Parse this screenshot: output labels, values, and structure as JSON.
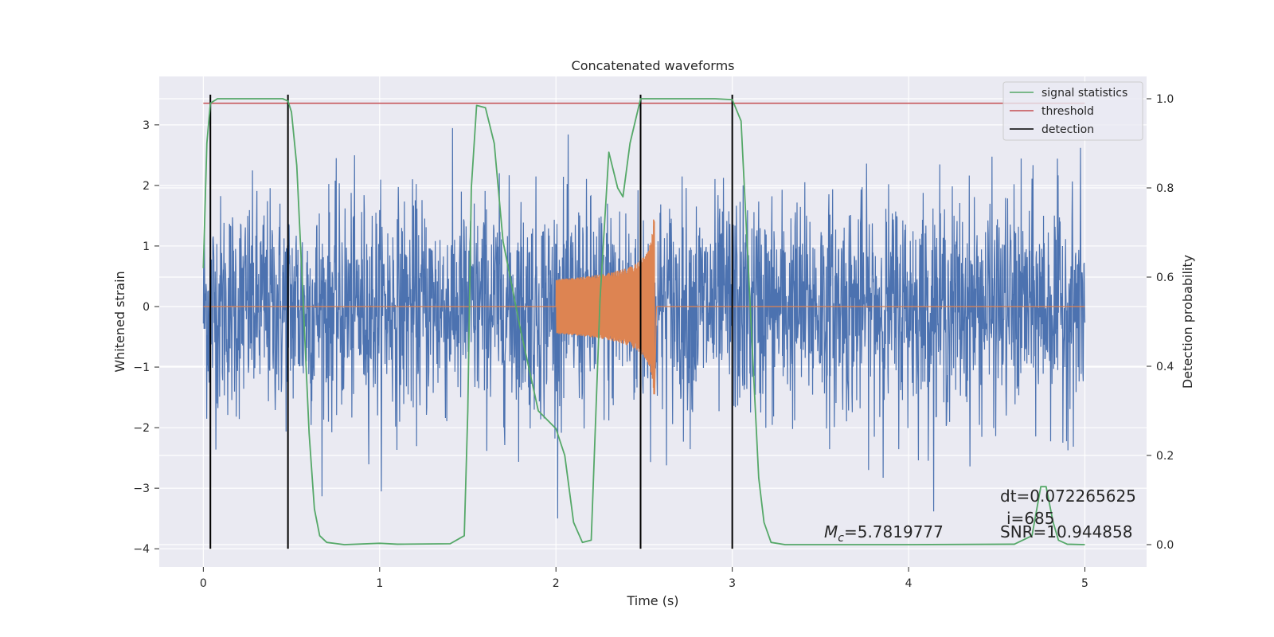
{
  "chart_data": {
    "type": "line",
    "title": "Concatenated waveforms",
    "xlabel": "Time (s)",
    "ylabel": "Whitened strain",
    "ylabel_right": "Detection probability",
    "xlim": [
      -0.25,
      5.35
    ],
    "ylim": [
      -4.3,
      3.8
    ],
    "ylim_right": [
      -0.05,
      1.05
    ],
    "xticks": [
      "0",
      "1",
      "2",
      "3",
      "4",
      "5"
    ],
    "yticks": [
      "3",
      "2",
      "1",
      "0",
      "−1",
      "−2",
      "−3",
      "−4"
    ],
    "yticks_right": [
      "1.0",
      "0.8",
      "0.6",
      "0.4",
      "0.2",
      "0.0"
    ],
    "grid": true,
    "legend_position": "top-right",
    "legend": [
      "signal statistics",
      "threshold",
      "detection"
    ],
    "colors": {
      "strain": "#4c72b0",
      "template": "#dd8452",
      "statistic": "#55a868",
      "threshold": "#c44e52",
      "detection": "#000000",
      "background": "#eaeaf2"
    },
    "series": [
      {
        "name": "signal statistics",
        "axis": "right",
        "x": [
          0.0,
          0.02,
          0.04,
          0.08,
          0.15,
          0.3,
          0.45,
          0.48,
          0.5,
          0.53,
          0.56,
          0.6,
          0.63,
          0.66,
          0.7,
          0.8,
          1.0,
          1.1,
          1.4,
          1.48,
          1.5,
          1.52,
          1.55,
          1.6,
          1.65,
          1.7,
          1.8,
          1.9,
          2.0,
          2.05,
          2.1,
          2.15,
          2.2,
          2.25,
          2.3,
          2.35,
          2.38,
          2.42,
          2.48,
          2.55,
          2.6,
          2.7,
          2.9,
          3.0,
          3.05,
          3.1,
          3.15,
          3.18,
          3.22,
          3.3,
          4.0,
          4.6,
          4.7,
          4.75,
          4.78,
          4.82,
          4.85,
          4.9,
          5.0
        ],
        "y": [
          0.62,
          0.9,
          0.99,
          1.0,
          1.0,
          1.0,
          1.0,
          0.995,
          0.97,
          0.85,
          0.6,
          0.25,
          0.08,
          0.02,
          0.005,
          0.0,
          0.003,
          0.001,
          0.002,
          0.02,
          0.3,
          0.8,
          0.985,
          0.98,
          0.9,
          0.68,
          0.48,
          0.3,
          0.26,
          0.2,
          0.05,
          0.005,
          0.01,
          0.55,
          0.88,
          0.8,
          0.78,
          0.9,
          1.0,
          1.0,
          1.0,
          1.0,
          1.0,
          0.998,
          0.95,
          0.55,
          0.15,
          0.05,
          0.005,
          0.0,
          0.0,
          0.001,
          0.02,
          0.13,
          0.13,
          0.05,
          0.01,
          0.001,
          0.0
        ]
      },
      {
        "name": "threshold",
        "axis": "right",
        "x": [
          0.0,
          5.0
        ],
        "y": [
          0.99,
          0.99
        ]
      },
      {
        "name": "detection",
        "axis": "left",
        "x": [
          0.04,
          0.48,
          2.48,
          3.0
        ],
        "y_range": [
          -4.0,
          3.5
        ]
      }
    ],
    "strain_signal": {
      "x_range": [
        0.0,
        5.0
      ],
      "amplitude_range": [
        -3.5,
        3.5
      ]
    },
    "template_signal": {
      "x_range": [
        2.0,
        2.56
      ],
      "amplitude_range": [
        -1.45,
        1.7
      ]
    },
    "annotations": [
      "dt=0.072265625",
      "i=685",
      "SNR=10.944858"
    ],
    "annotation_chirp_mass": {
      "symbol": "M",
      "subscript": "c",
      "value": "=5.7819777"
    }
  }
}
